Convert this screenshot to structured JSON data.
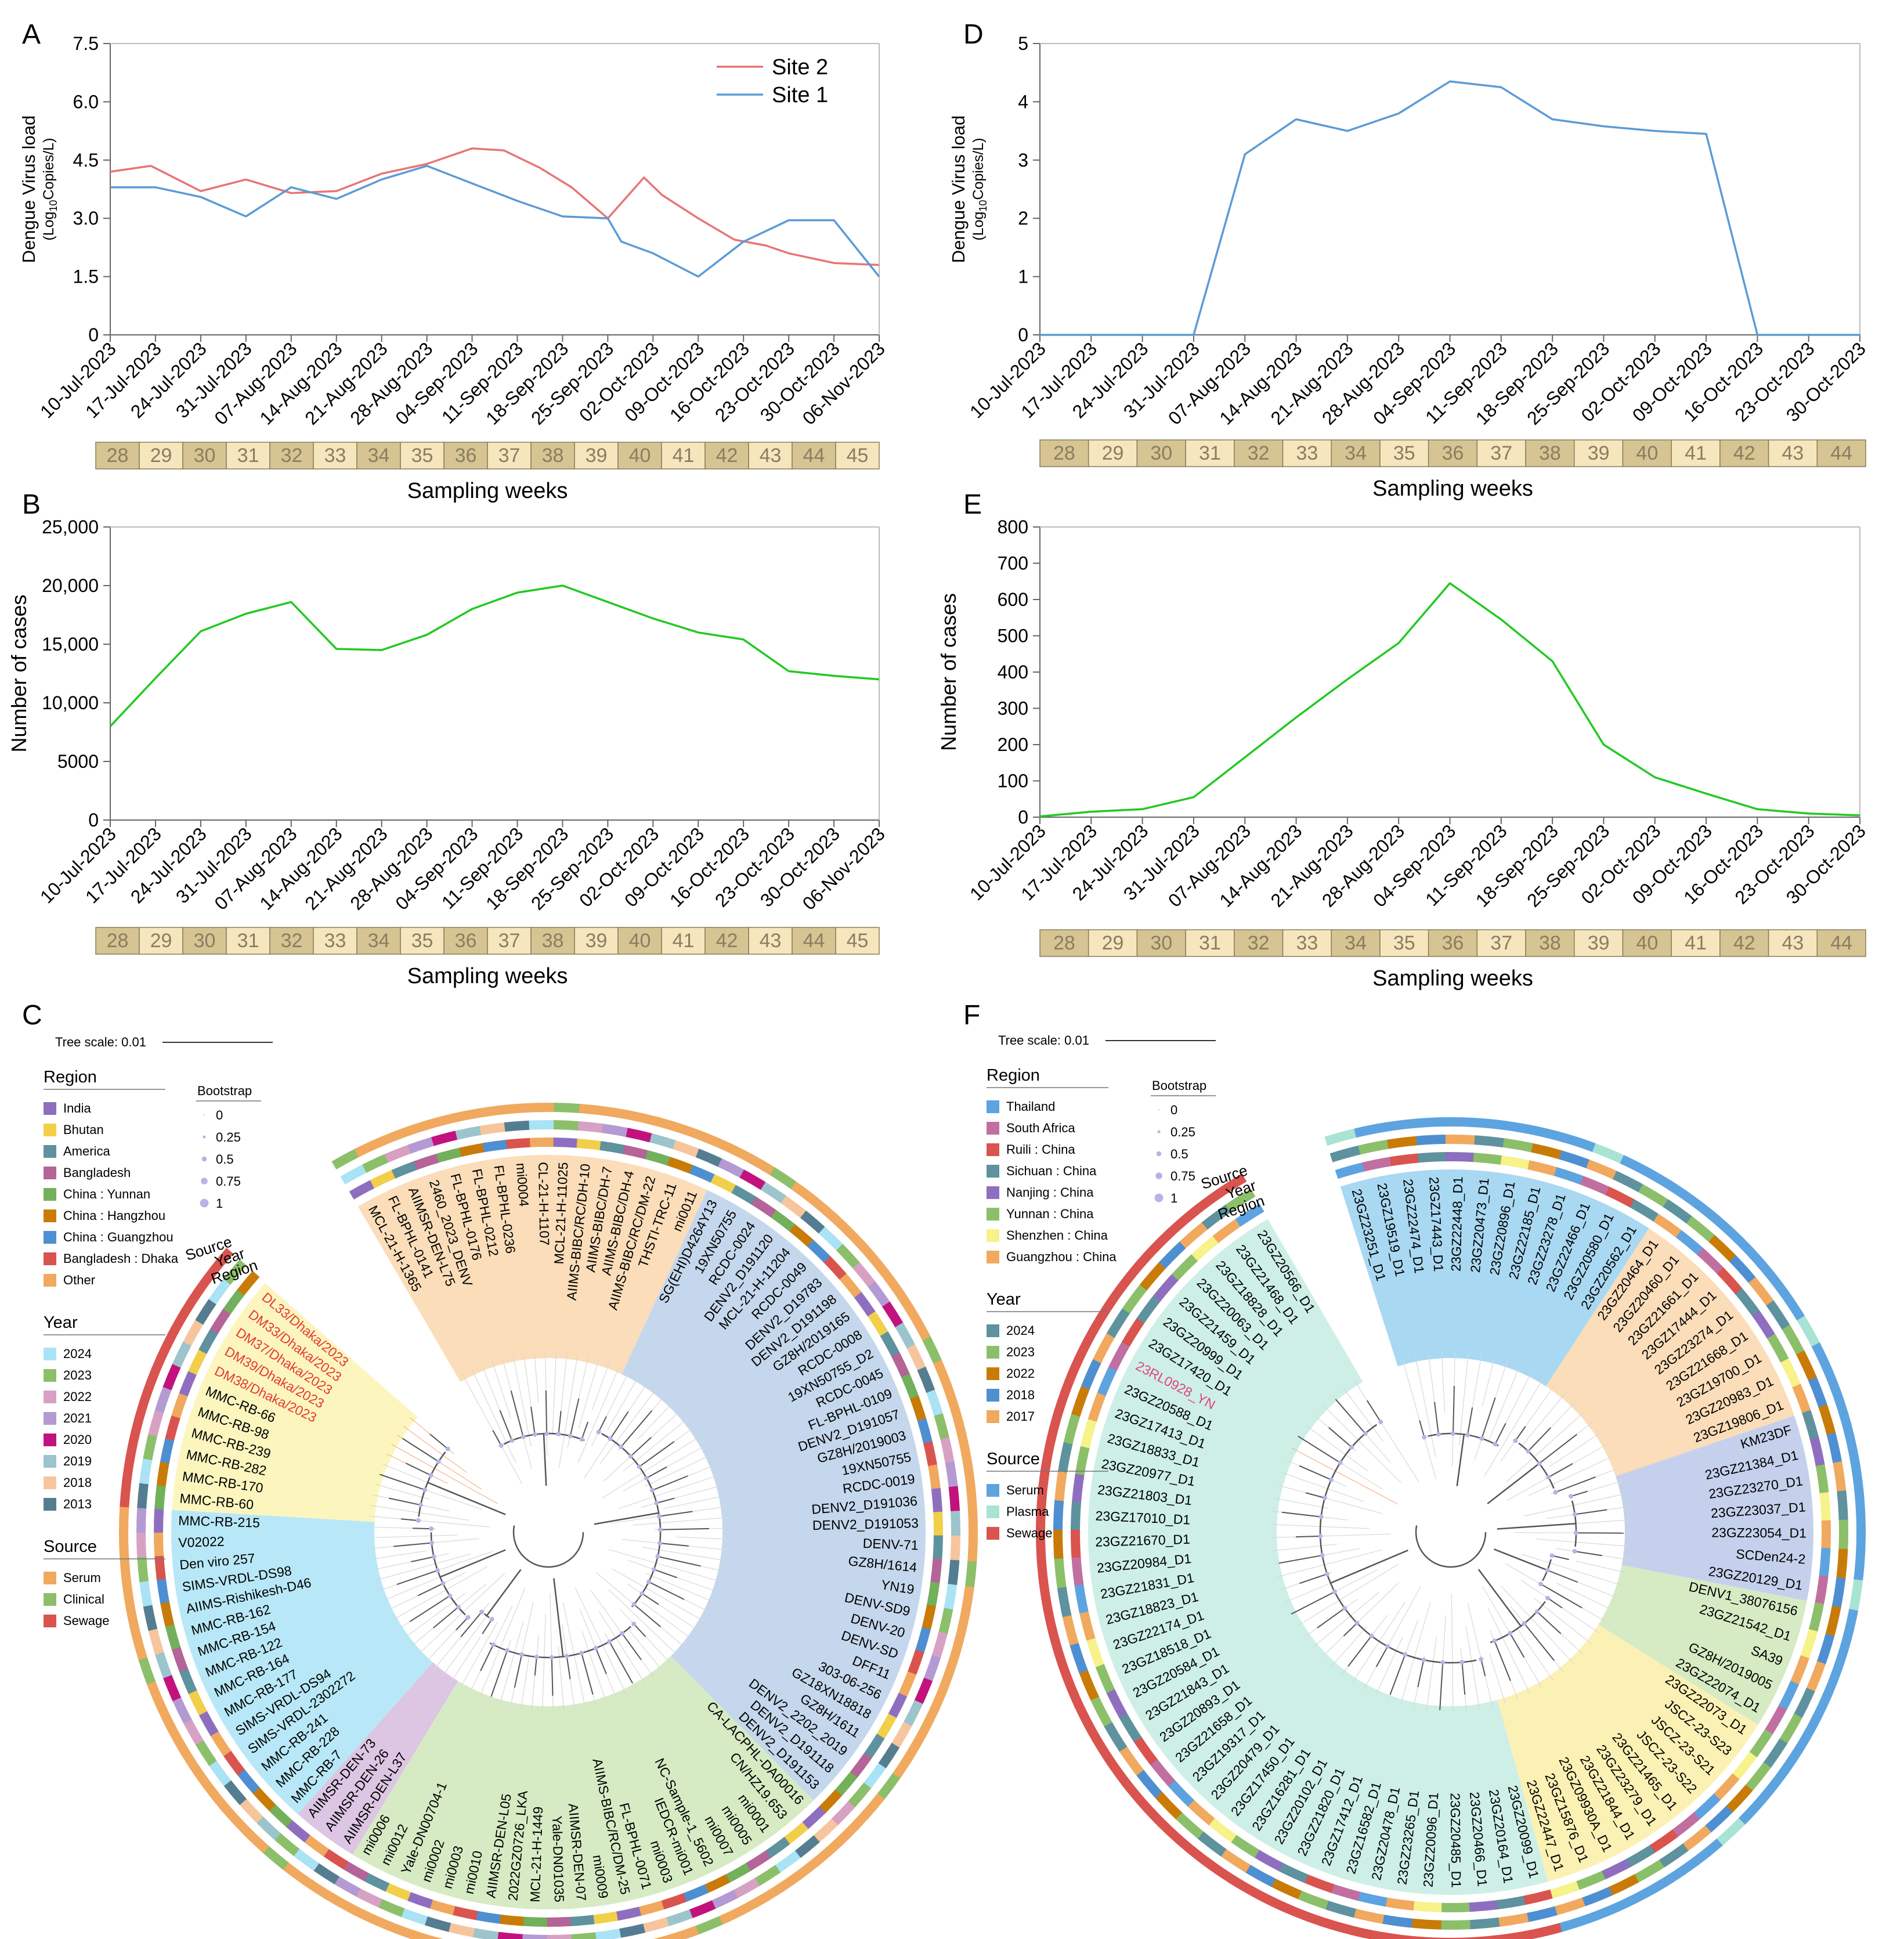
{
  "colors": {
    "site2": "#E87575",
    "site1": "#5B9BD5",
    "cases": "#22C922",
    "axis": "#666666",
    "week_dark": "#D6C493",
    "week_light": "#F5E6BE",
    "week_text": "#8A7E60",
    "highlight_red": "#E53935",
    "highlight_pink": "#E0457B"
  },
  "shared": {
    "week_axis_label": "Sampling weeks",
    "weeks_long": [
      "28",
      "29",
      "30",
      "31",
      "32",
      "33",
      "34",
      "35",
      "36",
      "37",
      "38",
      "39",
      "40",
      "41",
      "42",
      "43",
      "44",
      "45"
    ],
    "weeks_short": [
      "28",
      "29",
      "30",
      "31",
      "32",
      "33",
      "34",
      "35",
      "36",
      "37",
      "38",
      "39",
      "40",
      "41",
      "42",
      "43",
      "44"
    ]
  },
  "chart_data": [
    {
      "panel": "A",
      "type": "line",
      "categories": [
        "10-Jul-2023",
        "17-Jul-2023",
        "24-Jul-2023",
        "31-Jul-2023",
        "07-Aug-2023",
        "14-Aug-2023",
        "21-Aug-2023",
        "28-Aug-2023",
        "04-Sep-2023",
        "11-Sep-2023",
        "18-Sep-2023",
        "25-Sep-2023",
        "02-Oct-2023",
        "09-Oct-2023",
        "16-Oct-2023",
        "23-Oct-2023",
        "30-Oct-2023",
        "06-Nov-2023"
      ],
      "x_index": [
        0,
        0.5,
        1,
        1.5,
        2,
        2.5,
        3,
        3.5,
        4,
        4.5,
        5,
        5.5,
        6,
        6.5,
        7,
        7.5,
        8,
        8.5,
        9,
        9.5,
        10,
        10.5,
        11,
        11.5,
        12,
        12.5,
        13,
        13.5,
        14,
        14.5,
        15,
        15.5,
        16,
        16.5,
        17
      ],
      "series": [
        {
          "name": "Site 2",
          "color_key": "site2",
          "x": [
            0,
            0.9,
            2,
            3,
            4,
            5,
            6,
            7,
            8,
            8.7,
            9.5,
            10.2,
            11,
            11.8,
            12.2,
            13,
            13.8,
            14.5,
            15,
            16,
            17
          ],
          "values": [
            4.2,
            4.35,
            3.7,
            4.0,
            3.65,
            3.7,
            4.15,
            4.4,
            4.8,
            4.75,
            4.3,
            3.8,
            3.0,
            4.05,
            3.6,
            3.0,
            2.45,
            2.3,
            2.1,
            1.85,
            1.8
          ]
        },
        {
          "name": "Site 1",
          "color_key": "site1",
          "x": [
            0,
            1,
            2,
            3,
            4,
            5,
            6,
            7,
            8,
            9,
            10,
            11,
            11.3,
            12,
            13,
            14,
            15,
            16,
            17
          ],
          "values": [
            3.8,
            3.8,
            3.55,
            3.05,
            3.8,
            3.5,
            4.0,
            4.35,
            3.9,
            3.45,
            3.05,
            3.0,
            2.4,
            2.1,
            1.5,
            2.4,
            2.95,
            2.95,
            1.5
          ]
        }
      ],
      "ylabel": "Dengue Virus load",
      "ylabel_sub_prefix": "(Log",
      "ylabel_sub_sub": "10",
      "ylabel_sub_suffix": "Copies/L)",
      "ylim": [
        0,
        7.5
      ],
      "yticks": [
        "0",
        "1.5",
        "3.0",
        "4.5",
        "6.0",
        "7.5"
      ],
      "legend": [
        "Site 2",
        "Site 1"
      ]
    },
    {
      "panel": "B",
      "type": "line",
      "categories": [
        "10-Jul-2023",
        "17-Jul-2023",
        "24-Jul-2023",
        "31-Jul-2023",
        "07-Aug-2023",
        "14-Aug-2023",
        "21-Aug-2023",
        "28-Aug-2023",
        "04-Sep-2023",
        "11-Sep-2023",
        "18-Sep-2023",
        "25-Sep-2023",
        "02-Oct-2023",
        "09-Oct-2023",
        "16-Oct-2023",
        "23-Oct-2023",
        "30-Oct-2023",
        "06-Nov-2023"
      ],
      "series": [
        {
          "name": "Number of cases",
          "color_key": "cases",
          "values": [
            8000,
            12100,
            16100,
            17600,
            18600,
            14600,
            14500,
            15800,
            18000,
            19400,
            20000,
            18600,
            17200,
            16000,
            15400,
            12700,
            12300,
            12000
          ]
        }
      ],
      "ylabel": "Number of cases",
      "ylim": [
        0,
        25000
      ],
      "yticks": [
        "0",
        "5000",
        "10,000",
        "15,000",
        "20,000",
        "25,000"
      ]
    },
    {
      "panel": "D",
      "type": "line",
      "categories": [
        "10-Jul-2023",
        "17-Jul-2023",
        "24-Jul-2023",
        "31-Jul-2023",
        "07-Aug-2023",
        "14-Aug-2023",
        "21-Aug-2023",
        "28-Aug-2023",
        "04-Sep-2023",
        "11-Sep-2023",
        "18-Sep-2023",
        "25-Sep-2023",
        "02-Oct-2023",
        "09-Oct-2023",
        "16-Oct-2023",
        "23-Oct-2023",
        "30-Oct-2023"
      ],
      "series": [
        {
          "name": "Site 1",
          "color_key": "site1",
          "values": [
            0,
            0,
            0,
            0,
            3.1,
            3.7,
            3.5,
            3.8,
            4.35,
            4.25,
            3.7,
            3.58,
            3.5,
            3.45,
            0,
            0,
            0
          ]
        }
      ],
      "ylabel": "Dengue Virus load",
      "ylabel_sub_prefix": "(Log",
      "ylabel_sub_sub": "10",
      "ylabel_sub_suffix": "Copies/L)",
      "ylim": [
        0,
        5
      ],
      "yticks": [
        "0",
        "1",
        "2",
        "3",
        "4",
        "5"
      ]
    },
    {
      "panel": "E",
      "type": "line",
      "categories": [
        "10-Jul-2023",
        "17-Jul-2023",
        "24-Jul-2023",
        "31-Jul-2023",
        "07-Aug-2023",
        "14-Aug-2023",
        "21-Aug-2023",
        "28-Aug-2023",
        "04-Sep-2023",
        "11-Sep-2023",
        "18-Sep-2023",
        "25-Sep-2023",
        "02-Oct-2023",
        "09-Oct-2023",
        "16-Oct-2023",
        "23-Oct-2023",
        "30-Oct-2023"
      ],
      "series": [
        {
          "name": "Number of cases",
          "color_key": "cases",
          "values": [
            2,
            15,
            22,
            55,
            165,
            275,
            380,
            480,
            645,
            545,
            430,
            200,
            110,
            65,
            22,
            10,
            5
          ]
        }
      ],
      "ylabel": "Number of cases",
      "ylim": [
        0,
        800
      ],
      "yticks": [
        "0",
        "100",
        "200",
        "300",
        "400",
        "500",
        "600",
        "700",
        "800"
      ]
    }
  ],
  "treeC": {
    "panel": "C",
    "scale_label": "Tree scale: 0.01",
    "ring_labels": [
      "Source",
      "Year",
      "Region"
    ],
    "legend_region_title": "Region",
    "legend_region": [
      {
        "label": "India",
        "color": "#8E6FBF"
      },
      {
        "label": "Bhutan",
        "color": "#F2CF4A"
      },
      {
        "label": "America",
        "color": "#5E929E"
      },
      {
        "label": "Bangladesh",
        "color": "#B46496"
      },
      {
        "label": "China : Yunnan",
        "color": "#72B05B"
      },
      {
        "label": "China : Hangzhou",
        "color": "#C97B08"
      },
      {
        "label": "China : Guangzhou",
        "color": "#4E8FD1"
      },
      {
        "label": "Bangladesh : Dhaka",
        "color": "#D9534F"
      },
      {
        "label": "Other",
        "color": "#F0A95E"
      }
    ],
    "legend_bootstrap_title": "Bootstrap",
    "legend_bootstrap": [
      "0",
      "0.25",
      "0.5",
      "0.75",
      "1"
    ],
    "legend_year_title": "Year",
    "legend_year": [
      {
        "label": "2024",
        "color": "#A9E3F5"
      },
      {
        "label": "2023",
        "color": "#8CBF6A"
      },
      {
        "label": "2022",
        "color": "#D7A1C4"
      },
      {
        "label": "2021",
        "color": "#B49AD3"
      },
      {
        "label": "2020",
        "color": "#C2127E"
      },
      {
        "label": "2019",
        "color": "#9CC4CC"
      },
      {
        "label": "2018",
        "color": "#F6C59E"
      },
      {
        "label": "2013",
        "color": "#557D91"
      }
    ],
    "legend_source_title": "Source",
    "legend_source": [
      {
        "label": "Serum",
        "color": "#F0A95E"
      },
      {
        "label": "Clinical",
        "color": "#8CBF6A"
      },
      {
        "label": "Sewage",
        "color": "#D9534F"
      }
    ],
    "clades": [
      {
        "color": "#FBDDB9",
        "leaves": [
          "MCL-21-H-1365",
          "FL-BPHL-0141",
          "AIIMSR-DEN-L75",
          "2460_2023_DENV",
          "FL-BPHL-0176",
          "FL-BPHL-0212",
          "FL-BPHL-0236",
          "mi0004",
          "CL-21-H-1107",
          "MCL-21-H-11025",
          "AIIMS-BIBC/RC/DH-10",
          "AIIMS-BIBC/DH-7",
          "AIIMS-BIBC/DH-4",
          "AIIMS-BIBC/RC/DM-22",
          "THSTI-TRC-11",
          "mi0011"
        ]
      },
      {
        "color": "#C5D7EC",
        "leaves": [
          "SG(EHI)D4264Y13",
          "19XN50755",
          "RCDC-0024",
          "DENV2_D191120",
          "MCL-21-H-11204",
          "RCDC-0049",
          "DENV2_D19783",
          "DENV2_D191198",
          "GZ8H/2019165",
          "RCDC-0008",
          "19XN50755_D2",
          "RCDC-0045",
          "FL-BPHL-0109",
          "DENV2_D191057",
          "GZ8H/2019003",
          "19XN50755",
          "RCDC-0019",
          "DENV2_D191036",
          "DENV2_D191053",
          "DENV-71",
          "GZ8H/1614",
          "YN19",
          "DENV-SD9",
          "DENV-20",
          "DENV-SD",
          "DFF11",
          "303-06-256",
          "GZ18XN18818",
          "GZ8H/1611",
          "DENV2_2202_2019",
          "DENV2_D191118",
          "DENV2_D191153"
        ]
      },
      {
        "color": "#D6EBC4",
        "leaves": [
          "CA-LACPHL-DA00016",
          "CN/HZ19.653",
          "mi0001",
          "mi0005",
          "mi0007",
          "NC-Sample-1_5602",
          "IEDCR-mi001",
          "mi0003",
          "FL-BPHL-0071",
          "AIIMS-BIBC/RC/DM-25",
          "mi0009",
          "AIIMSR-DEN-07",
          "Yale-DN01035",
          "MCL-21-H-1449",
          "2022GZ0726_LKA",
          "AIIMSR-DEN-L05",
          "mi0010",
          "mi0003",
          "mi0002",
          "Yale-DN00704-1",
          "mi0012",
          "mi0006"
        ]
      },
      {
        "color": "#DCC6E3",
        "leaves": [
          "AIIMSR-DEN-L37",
          "AIIMSR-DEN-26",
          "AIIMSR-DEN-73"
        ]
      },
      {
        "color": "#B8E8F7",
        "leaves": [
          "MMC-RB-7",
          "MMC-RB-228",
          "MMC-RB-241",
          "SIMS-VRDL-2302272",
          "SIMS-VRDL-DS94",
          "MMC-RB-177",
          "MMC-RB-164",
          "MMC-RB-122",
          "MMC-RB-154",
          "MMC-RB-162",
          "AIIMS-Rishikesh-D46",
          "SIMS-VRDL-DS98",
          "Den viro 257",
          "V02022",
          "MMC-RB-215"
        ]
      },
      {
        "color": "#FCF6BE",
        "leaves": [
          "MMC-RB-60",
          "MMC-RB-170",
          "MMC-RB-282",
          "MMC-RB-239",
          "MMC-RB-98",
          "MMC-RB-66",
          "DM38/Dhaka/2023",
          "DM39/Dhaka/2023",
          "DM37/Dhaka/2023",
          "DM33/Dhaka/2023",
          "DL33/Dhaka/2023"
        ]
      }
    ],
    "red_leaves": [
      "DM38/Dhaka/2023",
      "DM39/Dhaka/2023",
      "DM37/Dhaka/2023",
      "DM33/Dhaka/2023",
      "DL33/Dhaka/2023"
    ]
  },
  "treeF": {
    "panel": "F",
    "scale_label": "Tree scale: 0.01",
    "ring_labels": [
      "Source",
      "Year",
      "Region"
    ],
    "legend_region_title": "Region",
    "legend_region": [
      {
        "label": "Thailand",
        "color": "#5DA3E0"
      },
      {
        "label": "South Africa",
        "color": "#C06FA0"
      },
      {
        "label": "Ruili : China",
        "color": "#D9534F"
      },
      {
        "label": "Sichuan : China",
        "color": "#5E929E"
      },
      {
        "label": "Nanjing : China",
        "color": "#8E6FBF"
      },
      {
        "label": "Yunnan : China",
        "color": "#8CBF6A"
      },
      {
        "label": "Shenzhen : China",
        "color": "#F7F28A"
      },
      {
        "label": "Guangzhou : China",
        "color": "#F0A95E"
      }
    ],
    "legend_bootstrap_title": "Bootstrap",
    "legend_bootstrap": [
      "0",
      "0.25",
      "0.5",
      "0.75",
      "1"
    ],
    "legend_year_title": "Year",
    "legend_year": [
      {
        "label": "2024",
        "color": "#5E929E"
      },
      {
        "label": "2023",
        "color": "#8CBF6A"
      },
      {
        "label": "2022",
        "color": "#C97B08"
      },
      {
        "label": "2018",
        "color": "#4E8FD1"
      },
      {
        "label": "2017",
        "color": "#F0A95E"
      }
    ],
    "legend_source_title": "Source",
    "legend_source": [
      {
        "label": "Serum",
        "color": "#5DA3E0"
      },
      {
        "label": "Plasma",
        "color": "#A8E3D3"
      },
      {
        "label": "Sewage",
        "color": "#D9534F"
      }
    ],
    "clades": [
      {
        "color": "#A9D8F2",
        "leaves": [
          "23GZ23251_D1",
          "23GZ19519_D1",
          "23GZ22474_D1",
          "23GZ17443_D1",
          "23GZ22448_D1",
          "23GZ20473_D1",
          "23GZ20896_D1",
          "23GZ22185_D1",
          "23GZ23278_D1",
          "23GZ22466_D1",
          "23GZ20580_D1",
          "23GZ20562_D1"
        ]
      },
      {
        "color": "#FBDDB9",
        "leaves": [
          "23GZ20464_D1",
          "23GZ20460_D1",
          "23GZ21661_D1",
          "23GZ17444_D1",
          "23GZ23274_D1",
          "23GZ21668_D1",
          "23GZ19700_D1",
          "23GZ20983_D1",
          "23GZ19806_D1"
        ]
      },
      {
        "color": "#C5D1EC",
        "leaves": [
          "KM23DF",
          "23GZ21384_D1",
          "23GZ23270_D1",
          "23GZ23037_D1",
          "23GZ23054_D1",
          "SCDen24-2",
          "23GZ20129_D1"
        ]
      },
      {
        "color": "#D6EBC4",
        "leaves": [
          "DENV1_38076156",
          "23GZ21542_D1",
          "SA39",
          "GZ8H/2019005",
          "23GZ22074_D1"
        ]
      },
      {
        "color": "#FCF1B4",
        "leaves": [
          "23GZ22073_D1",
          "JSCZ-23-S23",
          "JSCZ-23-S21",
          "JSCZ-23-S22",
          "23GZ21465_D1",
          "23GZ23279_D1",
          "23GZ21844_D1",
          "23GZ09930A_D1",
          "23GZ15876_D1",
          "23GZ22447_D1"
        ]
      },
      {
        "color": "#CDEFE6",
        "leaves": [
          "23GZ20099_D1",
          "23GZ20164_D1",
          "23GZ20466_D1",
          "23GZ20485_D1",
          "23GZ20096_D1",
          "23GZ23265_D1",
          "23GZ20478_D1",
          "23GZ16582_D1",
          "23GZ17412_D1",
          "23GZ21820_D1",
          "23GZ20102_D1",
          "23GZ16281_D1",
          "23GZ17450_D1",
          "23GZ20479_D1",
          "23GZ19317_D1",
          "23GZ21658_D1",
          "23GZ20893_D1",
          "23GZ21843_D1",
          "23GZ20584_D1",
          "23GZ18518_D1",
          "23GZ22174_D1",
          "23GZ18823_D1",
          "23GZ21831_D1",
          "23GZ20984_D1",
          "23GZ21670_D1",
          "23GZ17010_D1",
          "23GZ21803_D1",
          "23GZ20977_D1",
          "23GZ18833_D1",
          "23GZ17413_D1",
          "23GZ20588_D1",
          "23RL0928_YN",
          "23GZ17420_D1",
          "23GZ20999_D1",
          "23GZ21459_D1",
          "23GZ20063_D1",
          "23GZ18828_D1",
          "23GZ21468_D1",
          "23GZ20566_D1"
        ]
      }
    ],
    "pink_leaves": [
      "23RL0928_YN"
    ]
  }
}
